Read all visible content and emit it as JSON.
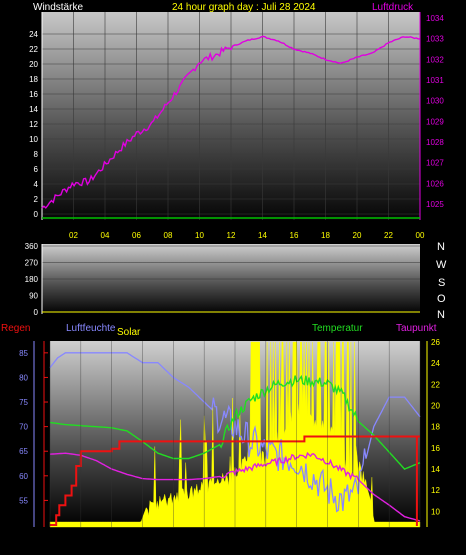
{
  "header": {
    "left_label": "Windstärke",
    "title": "24 hour graph day : Juli 28 2024",
    "right_label": "Luftdruck"
  },
  "panel2": {
    "right_letters": [
      "N",
      "W",
      "S",
      "O",
      "N"
    ]
  },
  "panel3": {
    "legend": {
      "regen": "Regen",
      "luftfeuchte": "Luftfeuchte",
      "solar": "Solar",
      "temperatur": "Temperatur",
      "taupunkt": "Taupunkt"
    }
  },
  "colors": {
    "wind": "#00c000",
    "pressure": "#e000e0",
    "title": "#ffff00",
    "humidity": "#8888ff",
    "solar": "#ffff00",
    "temperature": "#22dd22",
    "dewpoint": "#e020e0",
    "rain": "#ee1111"
  },
  "chart_data": [
    {
      "type": "line",
      "x_tick_labels": [
        "02",
        "04",
        "06",
        "08",
        "10",
        "12",
        "14",
        "16",
        "18",
        "20",
        "22",
        "00"
      ],
      "left_axis_ticks": [
        "24",
        "22",
        "20",
        "18",
        "16",
        "14",
        "12",
        "10",
        "8",
        "6",
        "4",
        "2",
        "0"
      ],
      "right_axis_ticks": [
        "1034",
        "1033",
        "1032",
        "1031",
        "1030",
        "1029",
        "1028",
        "1027",
        "1026",
        "1025"
      ],
      "series": [
        {
          "name": "Luftdruck",
          "axis": "right",
          "x": [
            0.0,
            0.5,
            1.0,
            1.5,
            2.0,
            3.0,
            4.0,
            5.0,
            6.0,
            7.0,
            8.0,
            9.0,
            10.0,
            11.0,
            12.0,
            13.0,
            14.0,
            15.0,
            16.0,
            17.0,
            18.0,
            19.0,
            20.0,
            21.0,
            22.0,
            23.0,
            24.0
          ],
          "values": [
            1024.8,
            1025.1,
            1025.4,
            1025.7,
            1026.0,
            1026.1,
            1026.9,
            1027.7,
            1028.4,
            1028.9,
            1029.9,
            1030.9,
            1031.9,
            1032.2,
            1032.6,
            1032.9,
            1033.1,
            1032.9,
            1032.5,
            1032.3,
            1032.0,
            1031.8,
            1032.1,
            1032.3,
            1032.8,
            1033.1,
            1033.0
          ]
        },
        {
          "name": "Windstärke",
          "axis": "left",
          "x": [
            0,
            24
          ],
          "values": [
            0,
            0
          ]
        }
      ]
    },
    {
      "type": "line",
      "left_axis_ticks": [
        "360",
        "270",
        "180",
        "90",
        "0"
      ],
      "series": []
    },
    {
      "type": "line",
      "left_axis_ticks": [
        "85",
        "80",
        "75",
        "70",
        "65",
        "60",
        "55"
      ],
      "right_axis_ticks": [
        "26",
        "24",
        "22",
        "20",
        "18",
        "16",
        "14",
        "12",
        "10"
      ],
      "series": [
        {
          "name": "Luftfeuchte",
          "axis": "left",
          "x": [
            0.0,
            0.5,
            1.0,
            2.0,
            3.0,
            4.0,
            5.0,
            5.5,
            6.0,
            7.0,
            8.0,
            9.0,
            10.0,
            11.0,
            12.0,
            13.0,
            14.0,
            15.0,
            16.0,
            17.0,
            18.0,
            19.0,
            20.0,
            21.0,
            22.0,
            23.0,
            24.0
          ],
          "values": [
            82,
            84,
            85,
            85,
            85,
            85,
            85,
            84,
            83,
            83,
            80,
            78,
            75,
            72,
            70,
            67,
            65,
            64,
            63,
            60,
            57,
            55,
            57,
            70,
            76,
            76,
            72
          ]
        },
        {
          "name": "Temperatur",
          "axis": "right",
          "x": [
            0.0,
            1.0,
            2.0,
            3.0,
            4.0,
            5.0,
            6.0,
            7.0,
            8.0,
            9.0,
            10.0,
            11.0,
            12.0,
            13.0,
            14.0,
            15.0,
            16.0,
            17.0,
            18.0,
            19.0,
            20.0,
            21.0,
            22.0,
            23.0,
            24.0
          ],
          "values": [
            18.4,
            18.2,
            18.1,
            18.0,
            17.9,
            17.6,
            16.6,
            15.5,
            15.0,
            15.0,
            15.5,
            16.3,
            19.0,
            20.5,
            21.5,
            22.2,
            22.4,
            22.3,
            22.1,
            21.0,
            18.5,
            17.2,
            15.6,
            14.0,
            14.6
          ]
        },
        {
          "name": "Taupunkt",
          "axis": "right",
          "x": [
            0.0,
            1.0,
            2.0,
            3.0,
            4.0,
            5.0,
            6.0,
            7.0,
            8.0,
            9.0,
            10.0,
            11.0,
            12.0,
            13.0,
            14.0,
            15.0,
            16.0,
            17.0,
            18.0,
            19.0,
            20.0,
            21.0,
            22.0,
            23.0,
            24.0
          ],
          "values": [
            15.4,
            15.5,
            15.3,
            14.8,
            14.0,
            13.5,
            13.1,
            13.0,
            13.0,
            13.0,
            13.1,
            13.3,
            13.7,
            14.1,
            14.5,
            14.8,
            15.2,
            15.4,
            14.7,
            13.8,
            13.0,
            11.6,
            10.6,
            9.5,
            9.1
          ]
        },
        {
          "name": "Regen",
          "axis": "left",
          "x": [
            0.0,
            0.4,
            0.6,
            1.0,
            1.4,
            1.7,
            2.0,
            4.0,
            4.5,
            16.0,
            16.5,
            24.0
          ],
          "values": [
            50,
            52,
            54,
            56,
            58,
            62,
            65,
            65.5,
            67,
            67,
            68,
            68
          ]
        },
        {
          "name": "Solar",
          "axis": "right",
          "x": [
            0.0,
            5.9,
            6.4,
            7.0,
            8.0,
            9.0,
            10.0,
            11.0,
            12.0,
            13.0,
            14.0,
            15.0,
            16.0,
            17.0,
            18.0,
            19.0,
            20.0,
            20.8,
            21.0,
            24.0
          ],
          "values": [
            9,
            9,
            11,
            11.5,
            12,
            12.5,
            13,
            13.5,
            14,
            16,
            18,
            20,
            22,
            22,
            21,
            18,
            15,
            12,
            9,
            9
          ]
        }
      ]
    }
  ]
}
